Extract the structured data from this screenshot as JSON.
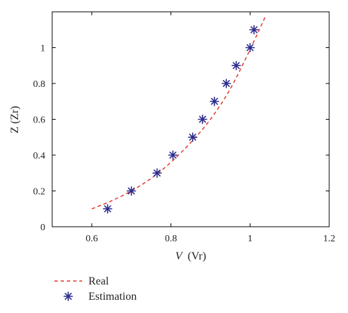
{
  "chart_data": {
    "type": "line",
    "xlabel": {
      "symbol": "V",
      "unit": "(Vr)"
    },
    "ylabel": "Z (Zr)",
    "xlim": [
      0.5,
      1.2
    ],
    "ylim": [
      0,
      1.2
    ],
    "xticks": [
      0.6,
      0.8,
      1,
      1.2
    ],
    "xtick_labels": [
      "0.6",
      "0.8",
      "1",
      "1.2"
    ],
    "yticks": [
      0,
      0.2,
      0.4,
      0.6,
      0.8,
      1
    ],
    "ytick_labels": [
      "0",
      "0.2",
      "0.4",
      "0.6",
      "0.8",
      "1"
    ],
    "grid": false,
    "legend_position": "below",
    "series": [
      {
        "name": "Real",
        "style": "dashed-line",
        "color": "#e03a2a",
        "x": [
          0.6,
          0.65,
          0.7,
          0.75,
          0.8,
          0.85,
          0.9,
          0.95,
          1.0,
          1.04
        ],
        "y": [
          0.1,
          0.145,
          0.2,
          0.27,
          0.36,
          0.47,
          0.6,
          0.77,
          0.99,
          1.18
        ]
      },
      {
        "name": "Estimation",
        "style": "asterisk-markers",
        "color": "#2b2b8c",
        "x": [
          0.64,
          0.7,
          0.765,
          0.805,
          0.855,
          0.88,
          0.91,
          0.94,
          0.965,
          1.0,
          1.01
        ],
        "y": [
          0.1,
          0.2,
          0.3,
          0.4,
          0.5,
          0.6,
          0.7,
          0.8,
          0.9,
          1.0,
          1.1
        ]
      }
    ]
  }
}
